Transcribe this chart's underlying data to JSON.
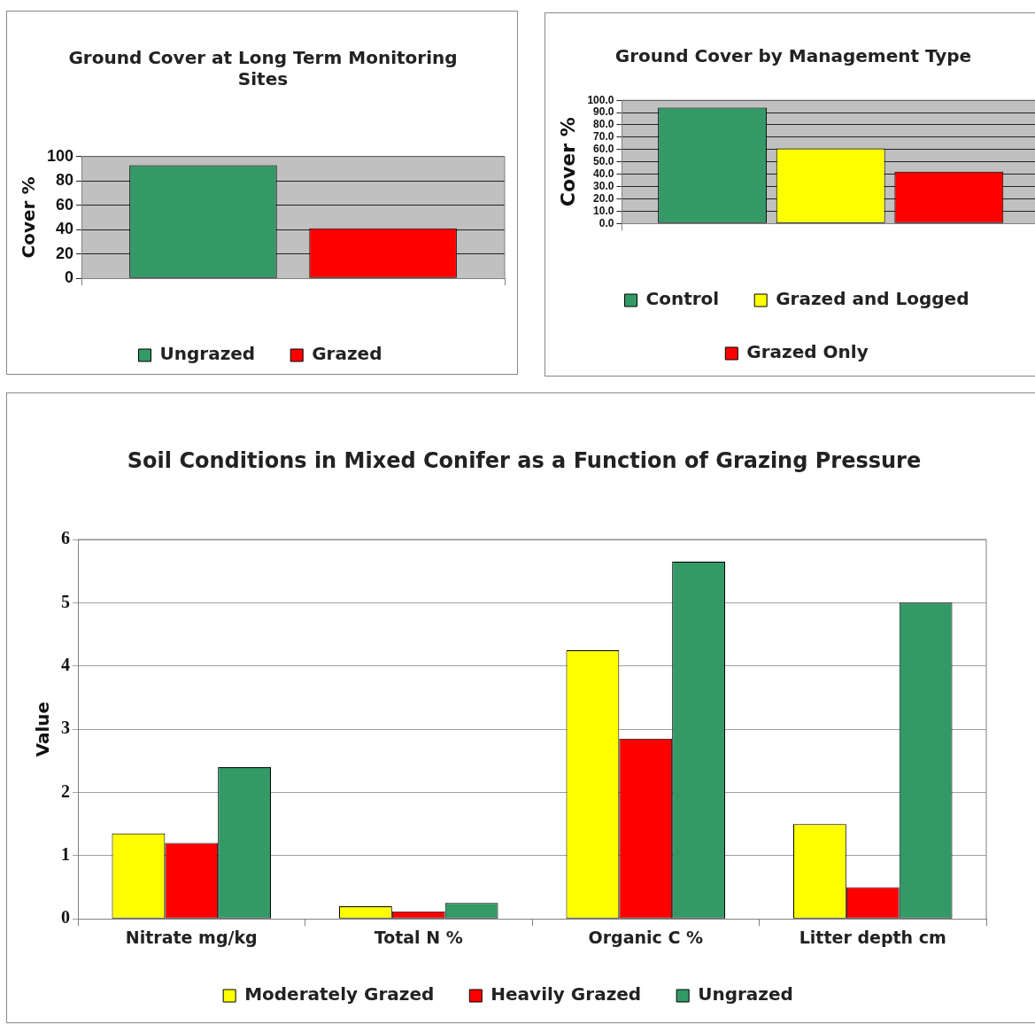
{
  "chart_data": [
    {
      "type": "bar",
      "title": "Ground Cover at Long Term Monitoring Sites",
      "ylabel": "Cover %",
      "categories": [
        null
      ],
      "series": [
        {
          "name": "Ungrazed",
          "color": "#339966",
          "values": [
            93
          ]
        },
        {
          "name": "Grazed",
          "color": "#ff0000",
          "values": [
            41
          ]
        }
      ],
      "ylim": [
        0,
        100
      ],
      "yticks": [
        0,
        20,
        40,
        60,
        80,
        100
      ],
      "grid": "y",
      "legend": "bottom"
    },
    {
      "type": "bar",
      "title": "Ground Cover by Management Type",
      "ylabel": "Cover %",
      "categories": [
        null
      ],
      "series": [
        {
          "name": "Control",
          "color": "#339966",
          "values": [
            94
          ]
        },
        {
          "name": "Grazed and Logged",
          "color": "#ffff00",
          "values": [
            61
          ]
        },
        {
          "name": "Grazed Only",
          "color": "#ff0000",
          "values": [
            42
          ]
        }
      ],
      "ylim": [
        0,
        100
      ],
      "yticks": [
        {
          "value": 0,
          "label": "0.0"
        },
        {
          "value": 10,
          "label": "10.0"
        },
        {
          "value": 20,
          "label": "20.0"
        },
        {
          "value": 30,
          "label": "30.0"
        },
        {
          "value": 40,
          "label": "40.0"
        },
        {
          "value": 50,
          "label": "50.0"
        },
        {
          "value": 60,
          "label": "60.0"
        },
        {
          "value": 70,
          "label": "70.0"
        },
        {
          "value": 80,
          "label": "80.0"
        },
        {
          "value": 90,
          "label": "90.0"
        },
        {
          "value": 100,
          "label": "100.0"
        }
      ],
      "grid": "y",
      "legend": "bottom"
    },
    {
      "type": "bar",
      "title": "Soil Conditions in Mixed Conifer as a Function of Grazing Pressure",
      "ylabel": "Value",
      "categories": [
        "Nitrate mg/kg",
        "Total N %",
        "Organic C %",
        "Litter depth cm"
      ],
      "series": [
        {
          "name": "Moderately Grazed",
          "color": "#ffff00",
          "values": [
            1.35,
            0.2,
            4.25,
            1.5
          ]
        },
        {
          "name": "Heavily Grazed",
          "color": "#ff0000",
          "values": [
            1.2,
            0.12,
            2.85,
            0.5
          ]
        },
        {
          "name": "Ungrazed",
          "color": "#339966",
          "values": [
            2.4,
            0.25,
            5.65,
            5.0
          ]
        }
      ],
      "ylim": [
        0,
        6
      ],
      "yticks": [
        0,
        1,
        2,
        3,
        4,
        5,
        6
      ],
      "grid": "y",
      "legend": "bottom"
    }
  ]
}
